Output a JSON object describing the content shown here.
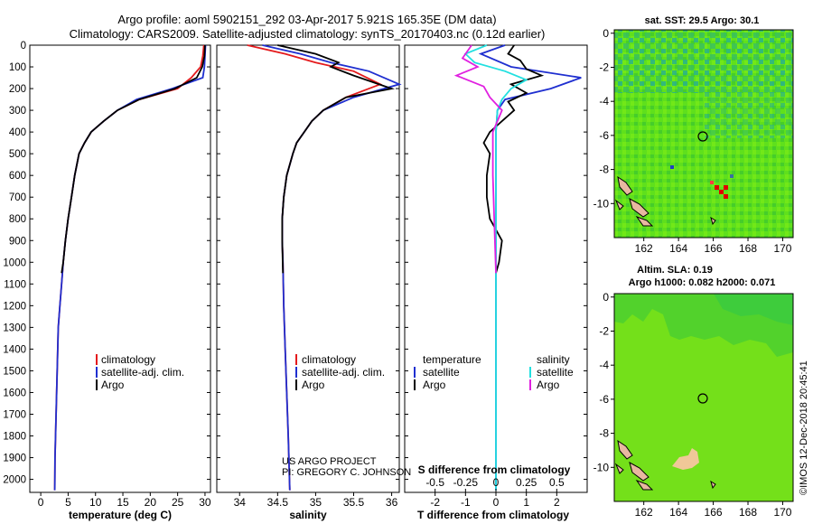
{
  "title": {
    "line1": "Argo profile: aoml 5902151_292 03-Apr-2017 5.921S 165.35E (DM data)",
    "line2": "Climatology: CARS2009. Satellite-adjusted climatology: synTS_20170403.nc (0.12d earlier)"
  },
  "colors": {
    "climatology": "#e41a1c",
    "satellite": "#1f2fd0",
    "argo": "#000000",
    "sat_salinity": "#22e0e0",
    "argo_salinity": "#e020e0"
  },
  "watermark": "©IMOS 12-Dec-2018 20:45:41",
  "credit": {
    "line1": "US ARGO PROJECT",
    "line2": "PI: GREGORY C. JOHNSON"
  },
  "chart_data": [
    {
      "type": "line",
      "id": "temperature",
      "xlabel": "temperature (deg C)",
      "xlim": [
        -2,
        31
      ],
      "xticks": [
        0,
        5,
        10,
        15,
        20,
        25,
        30
      ],
      "ylim": [
        2060,
        0
      ],
      "yticks": [
        0,
        100,
        200,
        300,
        400,
        500,
        600,
        700,
        800,
        900,
        1000,
        1100,
        1200,
        1300,
        1400,
        1500,
        1600,
        1700,
        1800,
        1900,
        2000
      ],
      "legend": [
        "climatology",
        "satellite-adj. clim.",
        "Argo"
      ],
      "series": [
        {
          "name": "climatology",
          "color": "#e41a1c",
          "x": [
            29.8,
            29.6,
            29.2,
            27.5,
            25.0,
            18.0,
            14.0,
            11.5,
            9.2,
            8.0,
            7.0,
            6.2,
            5.6,
            5.0,
            4.5,
            4.1,
            3.8,
            3.5,
            3.2,
            3.0,
            2.8,
            2.6,
            2.55
          ],
          "y": [
            0,
            50,
            100,
            150,
            200,
            250,
            300,
            350,
            400,
            450,
            500,
            600,
            700,
            800,
            900,
            1000,
            1100,
            1200,
            1300,
            1500,
            1700,
            1900,
            2050
          ]
        },
        {
          "name": "satellite-adj. clim.",
          "color": "#1f2fd0",
          "x": [
            30.1,
            30.0,
            29.9,
            29.6,
            24.0,
            17.5,
            14.0,
            11.5,
            9.2,
            8.0,
            7.0,
            6.2,
            5.6,
            5.0,
            4.5,
            4.1,
            3.8,
            3.5,
            3.2,
            3.0,
            2.8,
            2.6,
            2.55
          ],
          "y": [
            0,
            50,
            100,
            150,
            200,
            250,
            300,
            350,
            400,
            450,
            500,
            600,
            700,
            800,
            900,
            1000,
            1100,
            1200,
            1300,
            1500,
            1700,
            1900,
            2050
          ]
        },
        {
          "name": "Argo",
          "color": "#000000",
          "x": [
            30.0,
            29.9,
            29.5,
            28.5,
            24.5,
            18.0,
            14.0,
            11.5,
            9.2,
            8.0,
            7.0,
            6.2,
            5.6,
            5.0,
            4.5,
            4.1,
            3.8
          ],
          "y": [
            0,
            50,
            100,
            150,
            200,
            250,
            300,
            350,
            400,
            450,
            500,
            600,
            700,
            800,
            900,
            1000,
            1050
          ]
        }
      ]
    },
    {
      "type": "line",
      "id": "salinity",
      "xlabel": "salinity",
      "xlim": [
        33.7,
        36.1
      ],
      "xticks": [
        34,
        34.5,
        35,
        35.5,
        36
      ],
      "xticklabels": [
        "34",
        "34.5",
        "35",
        "35.5",
        "36"
      ],
      "ylim": [
        2060,
        0
      ],
      "legend": [
        "climatology",
        "satellite-adj. clim.",
        "Argo"
      ],
      "series": [
        {
          "name": "climatology",
          "color": "#e41a1c",
          "x": [
            34.1,
            34.6,
            35.0,
            35.5,
            35.85,
            35.4,
            35.1,
            34.95,
            34.85,
            34.75,
            34.7,
            34.62,
            34.58,
            34.56,
            34.56,
            34.57,
            34.58,
            34.6,
            34.62,
            34.64,
            34.66
          ],
          "y": [
            0,
            40,
            80,
            120,
            180,
            240,
            300,
            350,
            400,
            450,
            500,
            600,
            700,
            800,
            900,
            1000,
            1200,
            1400,
            1600,
            1800,
            2050
          ]
        },
        {
          "name": "satellite-adj. clim.",
          "color": "#1f2fd0",
          "x": [
            34.3,
            34.8,
            35.2,
            35.7,
            36.1,
            35.5,
            35.1,
            34.95,
            34.85,
            34.75,
            34.7,
            34.62,
            34.58,
            34.56,
            34.56,
            34.57,
            34.58,
            34.6,
            34.62,
            34.64,
            34.66
          ],
          "y": [
            0,
            40,
            80,
            120,
            180,
            240,
            300,
            350,
            400,
            450,
            500,
            600,
            700,
            800,
            900,
            1000,
            1200,
            1400,
            1600,
            1800,
            2050
          ]
        },
        {
          "name": "Argo",
          "color": "#000000",
          "x": [
            34.5,
            35.0,
            35.3,
            35.2,
            35.5,
            36.0,
            35.4,
            35.1,
            34.95,
            34.85,
            34.75,
            34.7,
            34.62,
            34.58,
            34.56,
            34.56,
            34.57
          ],
          "y": [
            0,
            40,
            80,
            100,
            140,
            200,
            240,
            300,
            350,
            400,
            450,
            500,
            600,
            700,
            800,
            900,
            1050
          ]
        }
      ]
    },
    {
      "type": "line",
      "id": "difference",
      "xlabel": "T difference from climatology",
      "xlabel_top": "S difference from climatology",
      "xlim": [
        -3.0,
        3.0
      ],
      "xticks": [
        -2,
        -1,
        0,
        1,
        2
      ],
      "xticks_top": [
        -0.5,
        -0.25,
        0,
        0.25,
        0.5
      ],
      "ylim": [
        2060,
        0
      ],
      "legend_left_title": "temperature",
      "legend_right_title": "salinity",
      "legend": [
        "satellite",
        "Argo",
        "satellite",
        "Argo"
      ],
      "series": [
        {
          "name": "T satellite",
          "color": "#1f2fd0",
          "x": [
            0.3,
            -0.5,
            0.5,
            2.8,
            1.8,
            0.3,
            0.05,
            0,
            0,
            0,
            0,
            0
          ],
          "y": [
            0,
            40,
            100,
            150,
            200,
            250,
            300,
            400,
            600,
            1000,
            1500,
            2050
          ]
        },
        {
          "name": "T Argo",
          "color": "#000000",
          "x": [
            0.6,
            0.4,
            0.8,
            1.0,
            1.5,
            0.5,
            1.0,
            0.4,
            0.6,
            0.2,
            -0.2,
            -0.4,
            -0.2,
            -0.3,
            -0.3,
            -0.2,
            0.2,
            0.1,
            0.0
          ],
          "y": [
            0,
            40,
            70,
            110,
            140,
            180,
            220,
            260,
            300,
            350,
            400,
            450,
            500,
            600,
            700,
            800,
            900,
            1000,
            1050
          ]
        },
        {
          "name": "S satellite",
          "color": "#22e0e0",
          "x": [
            -0.3,
            -1.0,
            -0.7,
            0.3,
            1.0,
            0.5,
            0.2,
            0.05,
            0,
            0,
            0
          ],
          "y": [
            0,
            40,
            80,
            120,
            160,
            200,
            250,
            300,
            400,
            1000,
            2050
          ]
        },
        {
          "name": "S Argo",
          "color": "#e020e0",
          "x": [
            -0.8,
            -1.1,
            -0.6,
            -1.3,
            -0.4,
            -0.2,
            0.2,
            -0.1,
            -0.1,
            0.0
          ],
          "y": [
            0,
            60,
            100,
            140,
            190,
            240,
            300,
            400,
            600,
            1050
          ]
        }
      ]
    },
    {
      "type": "heatmap",
      "id": "sst-map",
      "title": "sat. SST: 29.5 Argo: 30.1",
      "xlim": [
        160.3,
        170.6
      ],
      "ylim": [
        -12.0,
        0.2
      ],
      "xticks": [
        162,
        164,
        166,
        168,
        170
      ],
      "yticks": [
        0,
        -2,
        -4,
        -6,
        -8,
        -10
      ],
      "marker": {
        "lon": 165.35,
        "lat": -5.921
      }
    },
    {
      "type": "heatmap",
      "id": "sla-map",
      "title_line1": "Altim. SLA: 0.19",
      "title_line2": "Argo h1000: 0.082 h2000: 0.071",
      "xlim": [
        160.3,
        170.6
      ],
      "ylim": [
        -12.0,
        0.2
      ],
      "xticks": [
        162,
        164,
        166,
        168,
        170
      ],
      "yticks": [
        0,
        -2,
        -4,
        -6,
        -8,
        -10
      ],
      "marker": {
        "lon": 165.35,
        "lat": -5.921
      }
    }
  ]
}
